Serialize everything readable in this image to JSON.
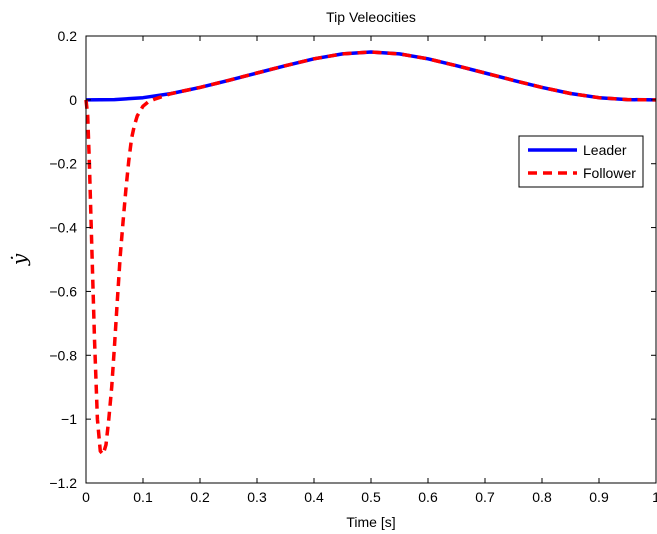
{
  "chart_data": {
    "type": "line",
    "title": "Tip Veleocities",
    "xlabel": "Time [s]",
    "ylabel": "ẏ",
    "xlim": [
      0,
      1
    ],
    "ylim": [
      -1.2,
      0.2
    ],
    "xticks": [
      0,
      0.1,
      0.2,
      0.3,
      0.4,
      0.5,
      0.6,
      0.7,
      0.8,
      0.9,
      1
    ],
    "xtick_labels": [
      "0",
      "0.1",
      "0.2",
      "0.3",
      "0.4",
      "0.5",
      "0.6",
      "0.7",
      "0.8",
      "0.9",
      "1"
    ],
    "yticks": [
      0.2,
      0,
      -0.2,
      -0.4,
      -0.6,
      -0.8,
      -1,
      -1.2
    ],
    "ytick_labels": [
      "0.2",
      "0",
      "−0.2",
      "−0.4",
      "−0.6",
      "−0.8",
      "−1",
      "−1.2"
    ],
    "grid": false,
    "legend": "right",
    "series": [
      {
        "name": "Leader",
        "color": "#0000ff",
        "style": "solid",
        "x": [
          0,
          0.05,
          0.1,
          0.15,
          0.2,
          0.25,
          0.3,
          0.35,
          0.4,
          0.45,
          0.5,
          0.55,
          0.6,
          0.65,
          0.7,
          0.75,
          0.8,
          0.85,
          0.9,
          0.95,
          1
        ],
        "y": [
          0,
          0.0009,
          0.0067,
          0.0199,
          0.0391,
          0.061,
          0.0842,
          0.107,
          0.1285,
          0.1438,
          0.15,
          0.1438,
          0.1285,
          0.107,
          0.0842,
          0.061,
          0.0391,
          0.0199,
          0.0067,
          0.0009,
          0
        ]
      },
      {
        "name": "Follower",
        "color": "#ff0000",
        "style": "dashed",
        "x": [
          0,
          0.003,
          0.006,
          0.01,
          0.015,
          0.02,
          0.025,
          0.03,
          0.035,
          0.04,
          0.045,
          0.05,
          0.055,
          0.06,
          0.065,
          0.07,
          0.075,
          0.08,
          0.085,
          0.09,
          0.1,
          0.11,
          0.12,
          0.13,
          0.15,
          0.2,
          0.25,
          0.3,
          0.35,
          0.4,
          0.45,
          0.5,
          0.55,
          0.6,
          0.65,
          0.7,
          0.75,
          0.8,
          0.85,
          0.9,
          0.95,
          1
        ],
        "y": [
          0,
          -0.05,
          -0.2,
          -0.45,
          -0.75,
          -1.0,
          -1.1,
          -1.11,
          -1.08,
          -1.0,
          -0.9,
          -0.77,
          -0.63,
          -0.49,
          -0.38,
          -0.28,
          -0.19,
          -0.12,
          -0.08,
          -0.05,
          -0.02,
          -0.005,
          0.002,
          0.008,
          0.0199,
          0.0391,
          0.061,
          0.0842,
          0.107,
          0.1285,
          0.1438,
          0.15,
          0.1438,
          0.1285,
          0.107,
          0.0842,
          0.061,
          0.0391,
          0.0199,
          0.0067,
          0.0009,
          0
        ]
      }
    ]
  }
}
